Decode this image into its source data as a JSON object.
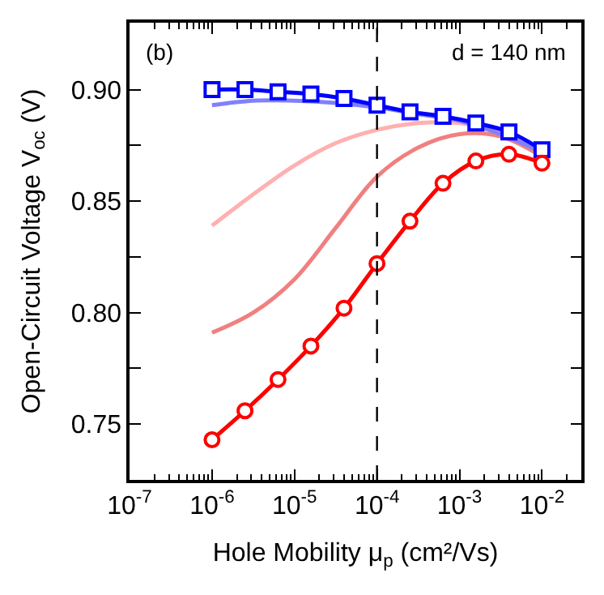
{
  "chart_data": {
    "type": "line",
    "xlabel": "Hole Mobility μ$_{p}$ (cm²/Vs)",
    "ylabel": "Open-Circuit Voltage V$_{oc}$ (V)",
    "annotations": [
      "(b)",
      "d = 140 nm"
    ],
    "log": "x",
    "xlim": [
      1e-07,
      0.03
    ],
    "xticks": [
      {
        "value": 1e-07,
        "label": "10$^{-7}$"
      },
      {
        "value": 1e-06,
        "label": "10$^{-6}$"
      },
      {
        "value": 1e-05,
        "label": "10$^{-5}$"
      },
      {
        "value": 0.0001,
        "label": "10$^{-4}$"
      },
      {
        "value": 0.001,
        "label": "10$^{-3}$"
      },
      {
        "value": 0.01,
        "label": "10$^{-2}$"
      }
    ],
    "ylim": [
      0.725,
      0.93
    ],
    "yticks": [
      {
        "value": 0.75,
        "label": "0.75"
      },
      {
        "value": 0.775,
        "label": null
      },
      {
        "value": 0.8,
        "label": "0.80"
      },
      {
        "value": 0.825,
        "label": null
      },
      {
        "value": 0.85,
        "label": "0.85"
      },
      {
        "value": 0.875,
        "label": null
      },
      {
        "value": 0.9,
        "label": "0.90"
      }
    ],
    "ref_lines": [
      {
        "axis": "x",
        "value": 0.0001,
        "color": "#000000",
        "line_style": "dashed"
      }
    ],
    "series": [
      {
        "color": "#ffb0b0",
        "marker": "none",
        "x": [
          1e-06,
          3.16e-06,
          1e-05,
          3.16e-05,
          0.0001,
          0.000316,
          0.001,
          0.00316,
          0.01
        ],
        "values": [
          0.839,
          0.853,
          0.866,
          0.876,
          0.882,
          0.885,
          0.885,
          0.881,
          0.873
        ]
      },
      {
        "color": "#f08080",
        "marker": "none",
        "x": [
          1e-06,
          3.16e-06,
          1e-05,
          3.16e-05,
          0.0001,
          0.000316,
          0.001,
          0.00316,
          0.01
        ],
        "values": [
          0.791,
          0.8,
          0.815,
          0.838,
          0.861,
          0.874,
          0.88,
          0.879,
          0.87
        ]
      },
      {
        "color": "#8080ff",
        "marker": "none",
        "x": [
          1e-06,
          3.16e-06,
          1e-05,
          3.16e-05,
          0.0001,
          0.000316,
          0.001,
          0.00316,
          0.01
        ],
        "values": [
          0.893,
          0.895,
          0.895,
          0.894,
          0.892,
          0.889,
          0.886,
          0.88,
          0.872
        ]
      },
      {
        "color": "#0000ff",
        "marker": "square",
        "x": [
          1e-06,
          2.51e-06,
          6.31e-06,
          1.58e-05,
          3.98e-05,
          0.0001,
          0.000251,
          0.000631,
          0.00158,
          0.00398,
          0.01
        ],
        "values": [
          0.9,
          0.9,
          0.899,
          0.898,
          0.896,
          0.893,
          0.89,
          0.888,
          0.885,
          0.881,
          0.873
        ]
      },
      {
        "color": "#ff0000",
        "marker": "circle",
        "x": [
          1e-06,
          2.51e-06,
          6.31e-06,
          1.58e-05,
          3.98e-05,
          0.0001,
          0.000251,
          0.000631,
          0.00158,
          0.00398,
          0.01
        ],
        "values": [
          0.743,
          0.756,
          0.77,
          0.785,
          0.802,
          0.822,
          0.841,
          0.858,
          0.868,
          0.871,
          0.867
        ]
      }
    ]
  }
}
